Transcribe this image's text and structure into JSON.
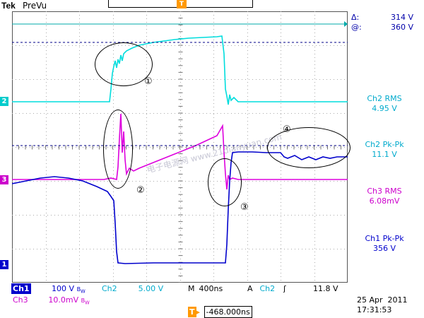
{
  "header": {
    "brand": "Tek",
    "mode": "PreVu",
    "trigger_position_marker": "T"
  },
  "readouts": {
    "cursor": {
      "delta_symbol": "Δ:",
      "delta_value": "314 V",
      "at_symbol": "@:",
      "at_value": "360 V"
    },
    "measurements": [
      {
        "label": "Ch2 RMS",
        "value": "4.95 V",
        "color": "#00aacc"
      },
      {
        "label": "Ch2 Pk-Pk",
        "value": "11.1 V",
        "color": "#00aacc"
      },
      {
        "label": "Ch3 RMS",
        "value": "6.08mV",
        "color": "#cc00cc"
      },
      {
        "label": "Ch1 Pk-Pk",
        "value": "356 V",
        "color": "#0000cc"
      }
    ]
  },
  "channel_markers": {
    "ch2": "2",
    "ch3": "3",
    "ch1": "1"
  },
  "annotations": [
    "①",
    "②",
    "③",
    "④"
  ],
  "watermark": "电子电源网 www.21dianyuan.com",
  "settings": {
    "ch1_label": "Ch1",
    "ch1_scale": "100 V",
    "ch1_bw": "B_W",
    "ch2_label": "Ch2",
    "ch2_scale": "5.00 V",
    "time_prefix": "M",
    "timebase": "400ns",
    "trigger_prefix": "A",
    "trigger_channel": "Ch2",
    "trigger_slope": "ʃ",
    "trigger_level": "11.8 V",
    "ch3_label": "Ch3",
    "ch3_scale": "10.0mV",
    "ch3_bw": "B_W",
    "trigger_offset_icon": "T→",
    "trigger_offset": "-468.000ns",
    "date": "25 Apr  2011",
    "time": "17:31:53"
  },
  "colors": {
    "ch1": "#0000cc",
    "ch2": "#00cccc",
    "ch3": "#cc00cc",
    "trigger": "#ff9900",
    "grid": "#999999"
  }
}
